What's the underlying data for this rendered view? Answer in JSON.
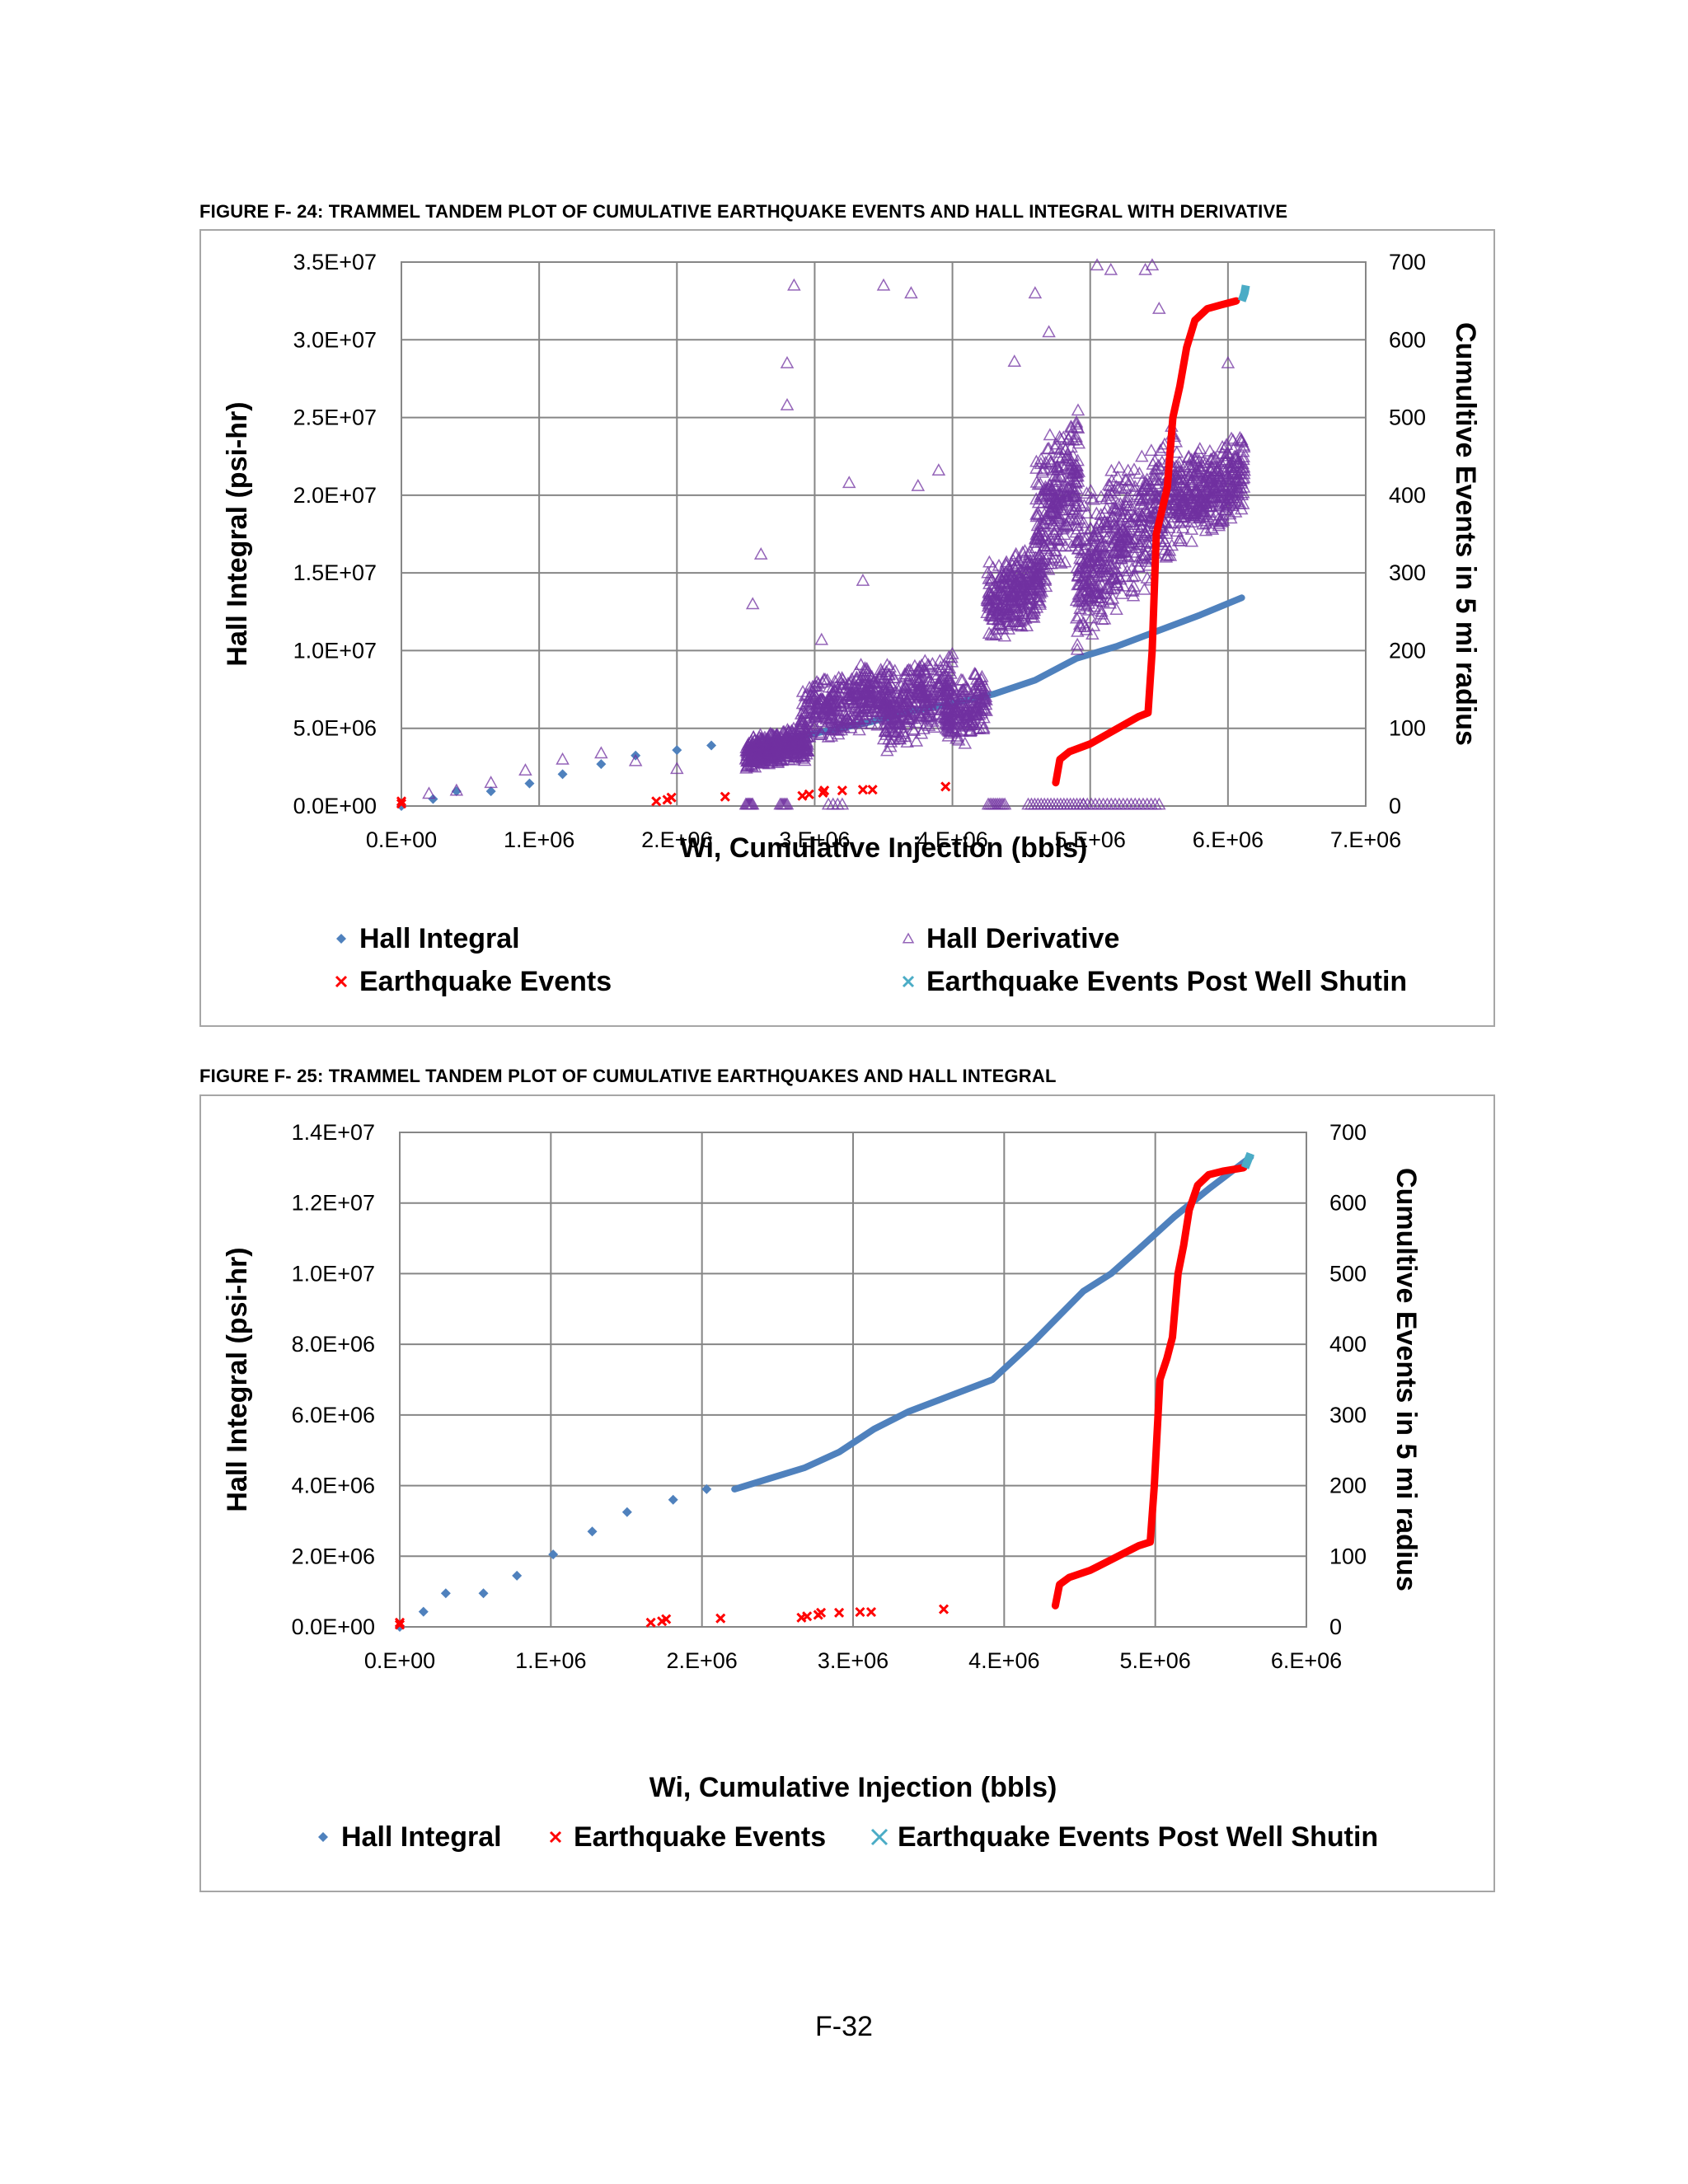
{
  "page_number": "F-32",
  "colors": {
    "hall_integral": "#4f81bd",
    "hall_derivative": "#7030a0",
    "earthquake_events": "#ff0000",
    "post_shutin": "#4bacc6",
    "grid": "#868686",
    "frame": "#a6a6a6"
  },
  "chart_data": [
    {
      "type": "scatter",
      "caption": "FIGURE F- 24: TRAMMEL TANDEM PLOT OF CUMULATIVE EARTHQUAKE EVENTS AND HALL INTEGRAL WITH DERIVATIVE",
      "xlabel": "Wi, Cumulative Injection (bbls)",
      "ylabel": "Hall Integral (psi-hr)",
      "y2label": "Cumultive Events in 5 mi radius",
      "xlim": [
        0,
        7000000
      ],
      "ylim": [
        0,
        35000000
      ],
      "y2lim": [
        0,
        700
      ],
      "xticks": [
        "0.E+00",
        "1.E+06",
        "2.E+06",
        "3.E+06",
        "4.E+06",
        "5.E+06",
        "6.E+06",
        "7.E+06"
      ],
      "yticks": [
        "0.0E+00",
        "5.0E+06",
        "1.0E+07",
        "1.5E+07",
        "2.0E+07",
        "2.5E+07",
        "3.0E+07",
        "3.5E+07"
      ],
      "y2ticks": [
        "0",
        "100",
        "200",
        "300",
        "400",
        "500",
        "600",
        "700"
      ],
      "grid": true,
      "legend_position": "bottom",
      "series": [
        {
          "name": "Hall Integral",
          "axis": "left",
          "marker": "diamond",
          "points": [
            [
              0,
              0
            ],
            [
              230000,
              450000
            ],
            [
              400000,
              950000
            ],
            [
              650000,
              950000
            ],
            [
              930000,
              1450000
            ],
            [
              1170000,
              2050000
            ],
            [
              1450000,
              2700000
            ],
            [
              1700000,
              3250000
            ],
            [
              2000000,
              3600000
            ],
            [
              2250000,
              3900000
            ]
          ],
          "line": [
            [
              2550000,
              3900000
            ],
            [
              2800000,
              4300000
            ],
            [
              3100000,
              4850000
            ],
            [
              3400000,
              5400000
            ],
            [
              3700000,
              6100000
            ],
            [
              4000000,
              6600000
            ],
            [
              4300000,
              7200000
            ],
            [
              4600000,
              8100000
            ],
            [
              4900000,
              9500000
            ],
            [
              5200000,
              10300000
            ],
            [
              5500000,
              11300000
            ],
            [
              5800000,
              12300000
            ],
            [
              6100000,
              13400000
            ]
          ]
        },
        {
          "name": "Hall Derivative",
          "axis": "left",
          "marker": "triangle",
          "points": [
            [
              200000,
              800000
            ],
            [
              400000,
              1000000
            ],
            [
              650000,
              1500000
            ],
            [
              900000,
              2300000
            ],
            [
              1170000,
              3000000
            ],
            [
              1450000,
              3400000
            ],
            [
              1700000,
              2900000
            ],
            [
              2000000,
              2400000
            ],
            [
              2550000,
              13000000
            ],
            [
              2610000,
              16200000
            ],
            [
              2800000,
              25800000
            ],
            [
              2800000,
              28500000
            ],
            [
              2850000,
              33500000
            ],
            [
              3050000,
              10700000
            ],
            [
              3250000,
              20800000
            ],
            [
              3350000,
              14500000
            ],
            [
              3500000,
              33500000
            ],
            [
              3700000,
              33000000
            ],
            [
              3750000,
              20600000
            ],
            [
              3900000,
              21600000
            ],
            [
              4450000,
              28600000
            ],
            [
              4600000,
              33000000
            ],
            [
              4700000,
              30500000
            ],
            [
              5050000,
              34800000
            ],
            [
              5150000,
              34500000
            ],
            [
              5400000,
              34500000
            ],
            [
              5450000,
              34800000
            ],
            [
              5500000,
              32000000
            ],
            [
              6000000,
              28500000
            ]
          ],
          "clouds": [
            {
              "x": [
                2500000,
                2950000
              ],
              "y": [
                2500000,
                5000000
              ],
              "n": 450
            },
            {
              "x": [
                2900000,
                3550000
              ],
              "y": [
                4500000,
                9000000
              ],
              "n": 380
            },
            {
              "x": [
                3500000,
                4000000
              ],
              "y": [
                4000000,
                9500000
              ],
              "n": 320
            },
            {
              "x": [
                3950000,
                4250000
              ],
              "y": [
                4000000,
                8500000
              ],
              "n": 180
            },
            {
              "x": [
                4250000,
                4650000
              ],
              "y": [
                11000000,
                16500000
              ],
              "n": 320
            },
            {
              "x": [
                4600000,
                4920000
              ],
              "y": [
                14500000,
                24500000
              ],
              "n": 280
            },
            {
              "x": [
                4900000,
                5250000
              ],
              "y": [
                11000000,
                21500000
              ],
              "n": 300
            },
            {
              "x": [
                5250000,
                5650000
              ],
              "y": [
                14000000,
                23500000
              ],
              "n": 280
            },
            {
              "x": [
                5650000,
                6120000
              ],
              "y": [
                17500000,
                23500000
              ],
              "n": 360
            }
          ],
          "baseline": [
            [
              2500000,
              2550000,
              8
            ],
            [
              2750000,
              2800000,
              6
            ],
            [
              3100000,
              3200000,
              4
            ],
            [
              4260000,
              4380000,
              10
            ],
            [
              4550000,
              4950000,
              18
            ],
            [
              4950000,
              5500000,
              20
            ]
          ]
        },
        {
          "name": "Earthquake Events",
          "axis": "right",
          "marker": "x",
          "points": [
            [
              0,
              3
            ],
            [
              0,
              6
            ],
            [
              1850000,
              6
            ],
            [
              1930000,
              8
            ],
            [
              1960000,
              11
            ],
            [
              2350000,
              12
            ],
            [
              2910000,
              13
            ],
            [
              2960000,
              15
            ],
            [
              3060000,
              17
            ],
            [
              3070000,
              20
            ],
            [
              3200000,
              20
            ],
            [
              3350000,
              21
            ],
            [
              3420000,
              21
            ],
            [
              3950000,
              25
            ]
          ],
          "line": [
            [
              4750000,
              30
            ],
            [
              4780000,
              60
            ],
            [
              4850000,
              70
            ],
            [
              5000000,
              80
            ],
            [
              5100000,
              90
            ],
            [
              5200000,
              100
            ],
            [
              5350000,
              115
            ],
            [
              5420000,
              120
            ],
            [
              5450000,
              200
            ],
            [
              5480000,
              350
            ],
            [
              5520000,
              380
            ],
            [
              5560000,
              410
            ],
            [
              5600000,
              500
            ],
            [
              5650000,
              540
            ],
            [
              5700000,
              590
            ],
            [
              5760000,
              625
            ],
            [
              5850000,
              640
            ],
            [
              5950000,
              645
            ],
            [
              6060000,
              650
            ]
          ]
        },
        {
          "name": "Earthquake Events Post Well Shutin",
          "axis": "right",
          "marker": "x",
          "line": [
            [
              6100000,
              650
            ],
            [
              6120000,
              660
            ],
            [
              6130000,
              670
            ]
          ]
        }
      ]
    },
    {
      "type": "scatter",
      "caption": "FIGURE F- 25: TRAMMEL TANDEM PLOT OF CUMULATIVE EARTHQUAKES AND HALL INTEGRAL",
      "xlabel": "Wi, Cumulative Injection (bbls)",
      "ylabel": "Hall Integral (psi-hr)",
      "y2label": "Cumultive Events in 5 mi radius",
      "xlim": [
        0,
        6500000
      ],
      "ylim": [
        0,
        14000000
      ],
      "y2lim": [
        0,
        700
      ],
      "xticks": [
        "0.E+00",
        "1.E+06",
        "2.E+06",
        "3.E+06",
        "4.E+06",
        "5.E+06",
        "6.E+06"
      ],
      "yticks": [
        "0.0E+00",
        "2.0E+06",
        "4.0E+06",
        "6.0E+06",
        "8.0E+06",
        "1.0E+07",
        "1.2E+07",
        "1.4E+07"
      ],
      "y2ticks": [
        "0",
        "100",
        "200",
        "300",
        "400",
        "500",
        "600",
        "700"
      ],
      "grid": true,
      "legend_position": "bottom",
      "series": [
        {
          "name": "Hall Integral",
          "axis": "left",
          "marker": "diamond",
          "points": [
            [
              0,
              0
            ],
            [
              170000,
              430000
            ],
            [
              330000,
              950000
            ],
            [
              600000,
              950000
            ],
            [
              840000,
              1450000
            ],
            [
              1100000,
              2050000
            ],
            [
              1380000,
              2700000
            ],
            [
              1630000,
              3250000
            ],
            [
              1960000,
              3600000
            ],
            [
              2200000,
              3900000
            ]
          ],
          "line": [
            [
              2400000,
              3900000
            ],
            [
              2650000,
              4200000
            ],
            [
              2900000,
              4500000
            ],
            [
              3150000,
              4950000
            ],
            [
              3400000,
              5600000
            ],
            [
              3650000,
              6100000
            ],
            [
              3950000,
              6550000
            ],
            [
              4250000,
              7000000
            ],
            [
              4550000,
              8100000
            ],
            [
              4900000,
              9500000
            ],
            [
              5100000,
              10000000
            ],
            [
              5300000,
              10700000
            ],
            [
              5550000,
              11600000
            ],
            [
              5800000,
              12400000
            ],
            [
              6100000,
              13300000
            ]
          ]
        },
        {
          "name": "Earthquake Events",
          "axis": "right",
          "marker": "x",
          "points": [
            [
              0,
              3
            ],
            [
              0,
              6
            ],
            [
              1800000,
              6
            ],
            [
              1880000,
              8
            ],
            [
              1910000,
              11
            ],
            [
              2300000,
              12
            ],
            [
              2880000,
              13
            ],
            [
              2920000,
              15
            ],
            [
              3000000,
              17
            ],
            [
              3020000,
              20
            ],
            [
              3150000,
              20
            ],
            [
              3300000,
              21
            ],
            [
              3380000,
              21
            ],
            [
              3900000,
              25
            ]
          ],
          "line": [
            [
              4700000,
              30
            ],
            [
              4730000,
              60
            ],
            [
              4800000,
              70
            ],
            [
              4950000,
              80
            ],
            [
              5050000,
              90
            ],
            [
              5150000,
              100
            ],
            [
              5300000,
              115
            ],
            [
              5380000,
              120
            ],
            [
              5410000,
              200
            ],
            [
              5450000,
              350
            ],
            [
              5500000,
              380
            ],
            [
              5540000,
              410
            ],
            [
              5580000,
              500
            ],
            [
              5620000,
              540
            ],
            [
              5660000,
              590
            ],
            [
              5720000,
              625
            ],
            [
              5800000,
              640
            ],
            [
              5900000,
              645
            ],
            [
              6050000,
              650
            ]
          ]
        },
        {
          "name": "Earthquake Events Post Well Shutin",
          "axis": "right",
          "marker": "x",
          "line": [
            [
              6060000,
              650
            ],
            [
              6080000,
              660
            ],
            [
              6100000,
              670
            ]
          ]
        }
      ]
    }
  ]
}
